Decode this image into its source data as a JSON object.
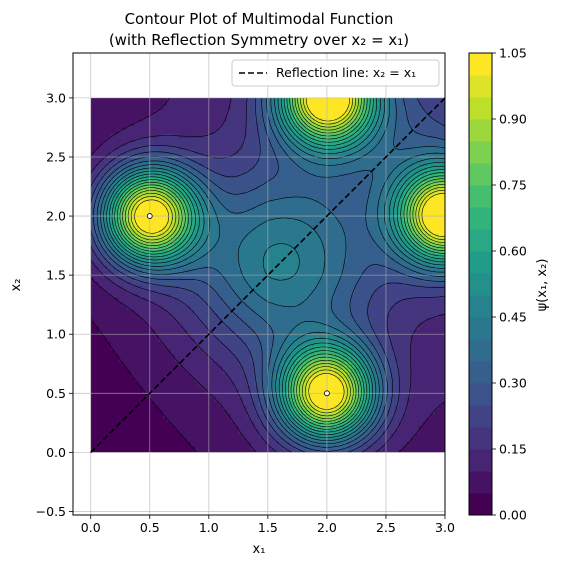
{
  "chart_data": {
    "type": "contour",
    "title_line1": "Contour Plot of Multimodal Function",
    "title_line2": "(with Reflection Symmetry over x₂ = x₁)",
    "xlabel": "x₁",
    "ylabel": "x₂",
    "xlim": [
      -0.15,
      3.0
    ],
    "ylim": [
      -0.53,
      3.38
    ],
    "x_ticks": [
      0.0,
      0.5,
      1.0,
      1.5,
      2.0,
      2.5,
      3.0
    ],
    "x_tick_labels": [
      "0.0",
      "0.5",
      "1.0",
      "1.5",
      "2.0",
      "2.5",
      "3.0"
    ],
    "y_ticks": [
      -0.5,
      0.0,
      0.5,
      1.0,
      1.5,
      2.0,
      2.5,
      3.0
    ],
    "y_tick_labels": [
      "−0.5",
      "0.0",
      "0.5",
      "1.0",
      "1.5",
      "2.0",
      "2.5",
      "3.0"
    ],
    "grid": true,
    "data_domain": {
      "x": [
        0,
        3
      ],
      "y": [
        0,
        3
      ]
    },
    "peaks": [
      {
        "x": 0.5,
        "y": 2.0,
        "value": 1.0,
        "marked": true
      },
      {
        "x": 2.0,
        "y": 0.5,
        "value": 1.0,
        "marked": true
      },
      {
        "x": 2.0,
        "y": 3.0,
        "value": 1.0,
        "marked": false
      },
      {
        "x": 3.0,
        "y": 2.0,
        "value": 1.0,
        "marked": false
      }
    ],
    "reflection_line": {
      "label": "Reflection line: x₂ = x₁",
      "from": [
        0,
        0
      ],
      "to": [
        3,
        3
      ],
      "style": "dashed",
      "color": "#000000"
    },
    "legend": {
      "placement": "upper right"
    },
    "colorbar": {
      "label": "ψ(x₁, x₂)",
      "colormap": "viridis",
      "levels": [
        0.0,
        1.05
      ],
      "ticks": [
        0.0,
        0.15,
        0.3,
        0.45,
        0.6,
        0.75,
        0.9,
        1.05
      ],
      "tick_labels": [
        "0.00",
        "0.15",
        "0.30",
        "0.45",
        "0.60",
        "0.75",
        "0.90",
        "1.05"
      ]
    }
  }
}
